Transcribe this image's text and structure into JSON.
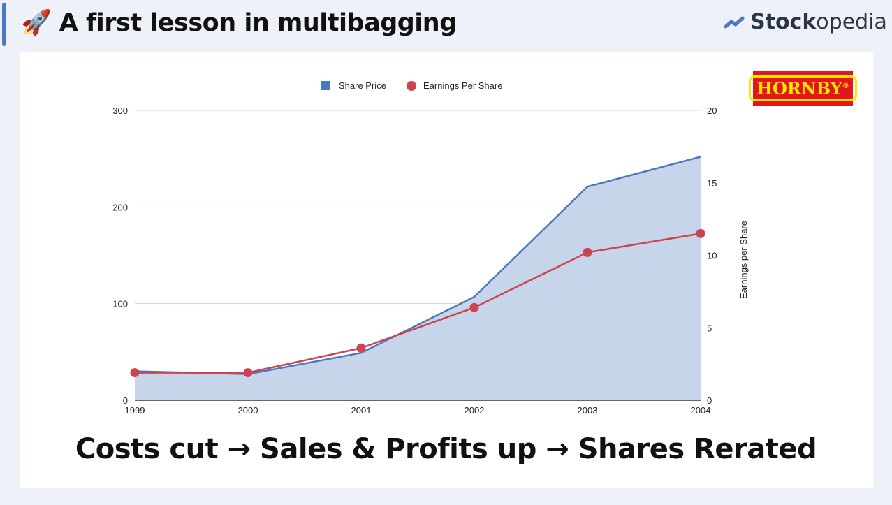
{
  "header": {
    "title": "🚀 A first lesson in multibagging",
    "brand_bold": "Stock",
    "brand_light": "opedia"
  },
  "logo_text": "HORNBY®",
  "caption": "Costs cut → Sales & Profits up →  Shares Rerated",
  "chart_data": {
    "type": "area+line",
    "categories": [
      "1999",
      "2000",
      "2001",
      "2002",
      "2003",
      "2004"
    ],
    "series": [
      {
        "name": "Share Price",
        "type": "area",
        "axis": "left",
        "color": "#4a78c2",
        "values": [
          30,
          27,
          49,
          107,
          221,
          252
        ]
      },
      {
        "name": "Earnings Per Share",
        "type": "line",
        "axis": "right",
        "color": "#cc4451",
        "values": [
          1.9,
          1.9,
          3.6,
          6.4,
          10.2,
          11.5
        ]
      }
    ],
    "left_axis": {
      "ylim": [
        0,
        300
      ],
      "ticks": [
        "0",
        "100",
        "200",
        "300"
      ],
      "label": ""
    },
    "right_axis": {
      "ylim": [
        0,
        20
      ],
      "ticks": [
        "0",
        "5",
        "10",
        "15",
        "20"
      ],
      "label": "Earnings per Share"
    },
    "legend": "top",
    "grid": true
  }
}
